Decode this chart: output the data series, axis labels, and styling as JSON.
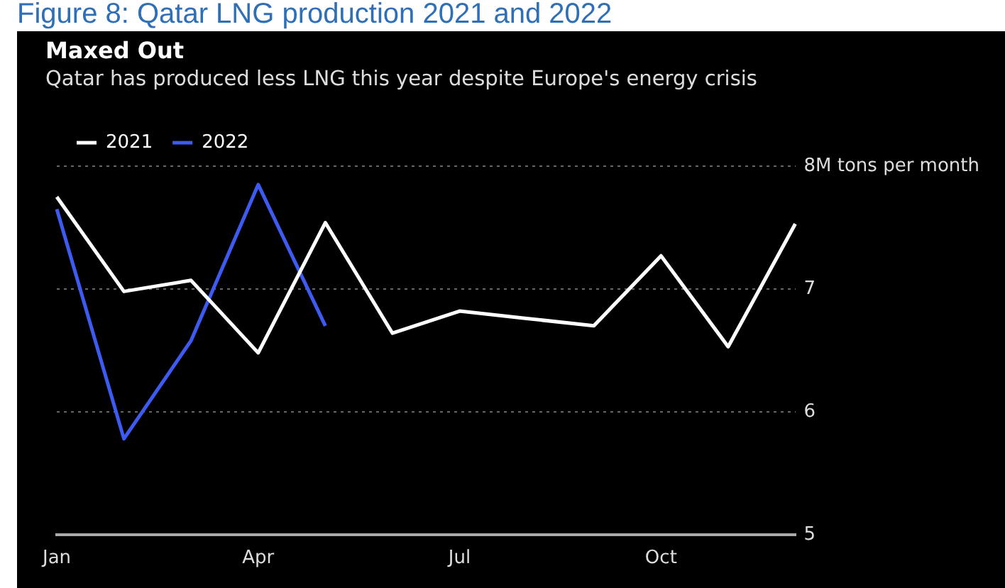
{
  "chart_data": {
    "type": "line",
    "title": "Maxed Out",
    "subtitle": "Qatar has produced less LNG this year despite Europe's energy crisis",
    "annotations": [
      "Figure 8: Qatar LNG production 2021 and 2022"
    ],
    "categories": [
      "Jan",
      null,
      null,
      "Apr",
      null,
      null,
      "Jul",
      null,
      null,
      "Oct",
      null,
      null
    ],
    "series": [
      {
        "name": "2021",
        "color": "#ffffff",
        "values": [
          7.75,
          6.98,
          7.07,
          6.48,
          7.54,
          6.64,
          6.82,
          6.76,
          6.7,
          7.27,
          6.53,
          7.53
        ]
      },
      {
        "name": "2022",
        "color": "#3d5af1",
        "values": [
          7.65,
          5.78,
          6.58,
          7.85,
          6.7,
          null,
          null,
          null,
          null,
          null,
          null,
          null
        ]
      }
    ],
    "ylim": [
      5,
      8
    ],
    "yticks": [
      5,
      6,
      7,
      {
        "value": 8,
        "label": "8M tons per month"
      }
    ],
    "grid": "y",
    "legend": "top left",
    "marker": "none",
    "line_style": "solid"
  }
}
